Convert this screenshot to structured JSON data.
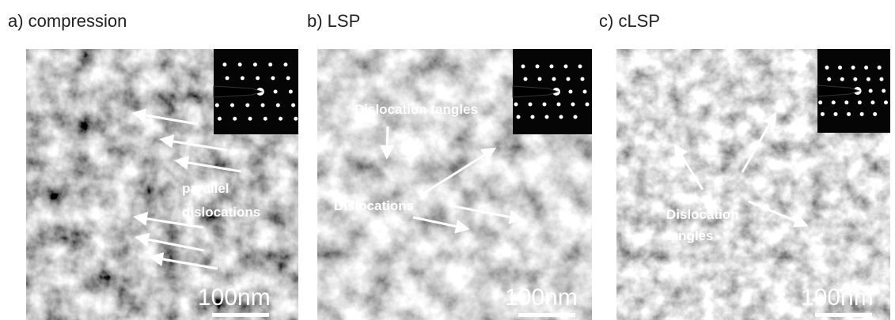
{
  "panels": [
    {
      "label": "a) compression",
      "annotations": [
        "parallel",
        "dislocations"
      ],
      "scale_bar": "100nm"
    },
    {
      "label": "b) LSP",
      "annotations": [
        "Dislocation tangles",
        "Dislocations"
      ],
      "scale_bar": "100nm"
    },
    {
      "label": "c) cLSP",
      "annotations": [
        "Dislocation",
        "tangles"
      ],
      "scale_bar": "100nm"
    }
  ]
}
